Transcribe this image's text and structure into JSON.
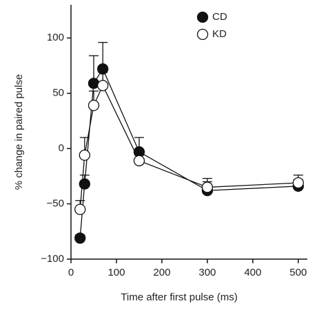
{
  "chart_data": {
    "type": "scatter",
    "x_label": "Time after first pulse (ms)",
    "y_label": "% change in paired pulse",
    "x": [
      20,
      30,
      50,
      70,
      150,
      300,
      500
    ],
    "series": [
      {
        "name": "CD",
        "color": "#111111",
        "fill": "#111111",
        "values": [
          -81,
          -32,
          59,
          72,
          -3,
          -38,
          -34
        ],
        "errors": [
          3,
          8,
          25,
          24,
          13,
          8,
          6
        ]
      },
      {
        "name": "KD",
        "color": "#111111",
        "fill": "#ffffff",
        "values": [
          -55,
          -6,
          39,
          57,
          -11,
          -35,
          -31
        ],
        "errors": [
          8,
          16,
          13,
          12,
          5,
          8,
          7
        ]
      }
    ],
    "xlim": [
      0,
      520
    ],
    "ylim": [
      -100,
      130
    ],
    "xticks": [
      0,
      100,
      200,
      300,
      400,
      500
    ],
    "yticks": [
      {
        "value": -100,
        "label": "−100"
      },
      {
        "value": -50,
        "label": "−50"
      },
      0,
      50,
      100
    ]
  }
}
